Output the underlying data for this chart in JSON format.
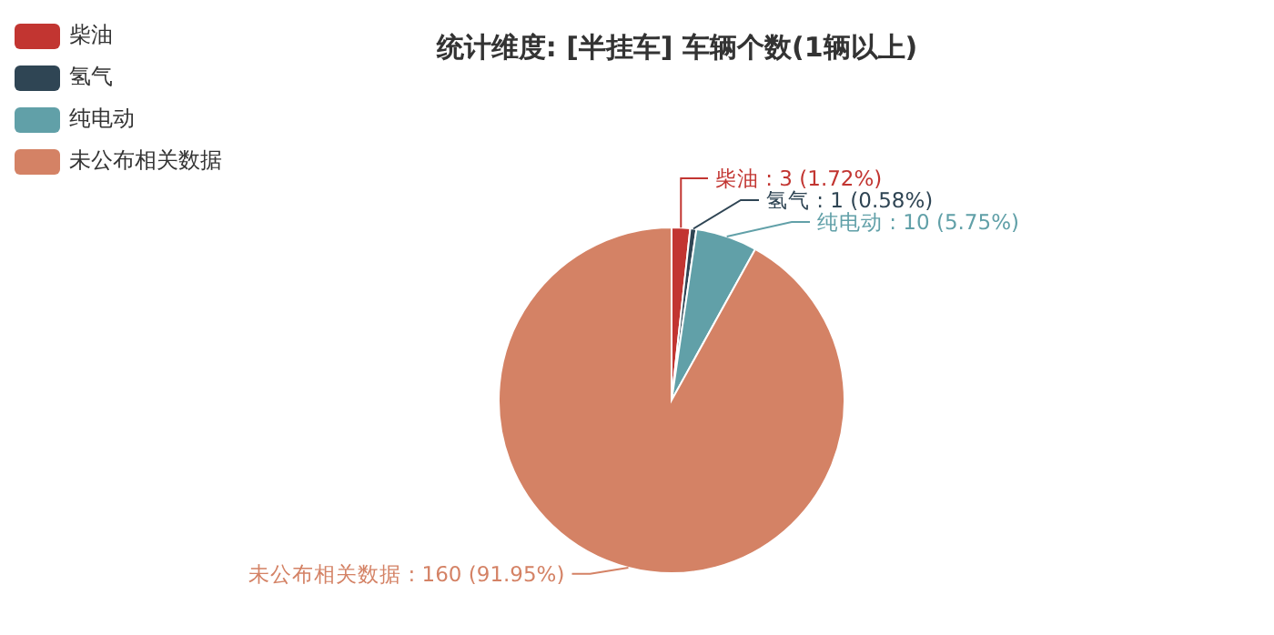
{
  "chart_data": {
    "type": "pie",
    "title": "统计维度: [半挂车] 车辆个数(1辆以上)",
    "categories": [
      "柴油",
      "氢气",
      "纯电动",
      "未公布相关数据"
    ],
    "values": [
      3,
      1,
      10,
      160
    ],
    "colors": [
      "#c23531",
      "#2f4554",
      "#61a0a8",
      "#d48265"
    ],
    "value_labels": [
      ": 3 (1.72%)",
      ": 1 (0.58%)",
      ": 10 (5.75%)",
      ": 160 (91.95%)"
    ],
    "legend": "top left"
  }
}
